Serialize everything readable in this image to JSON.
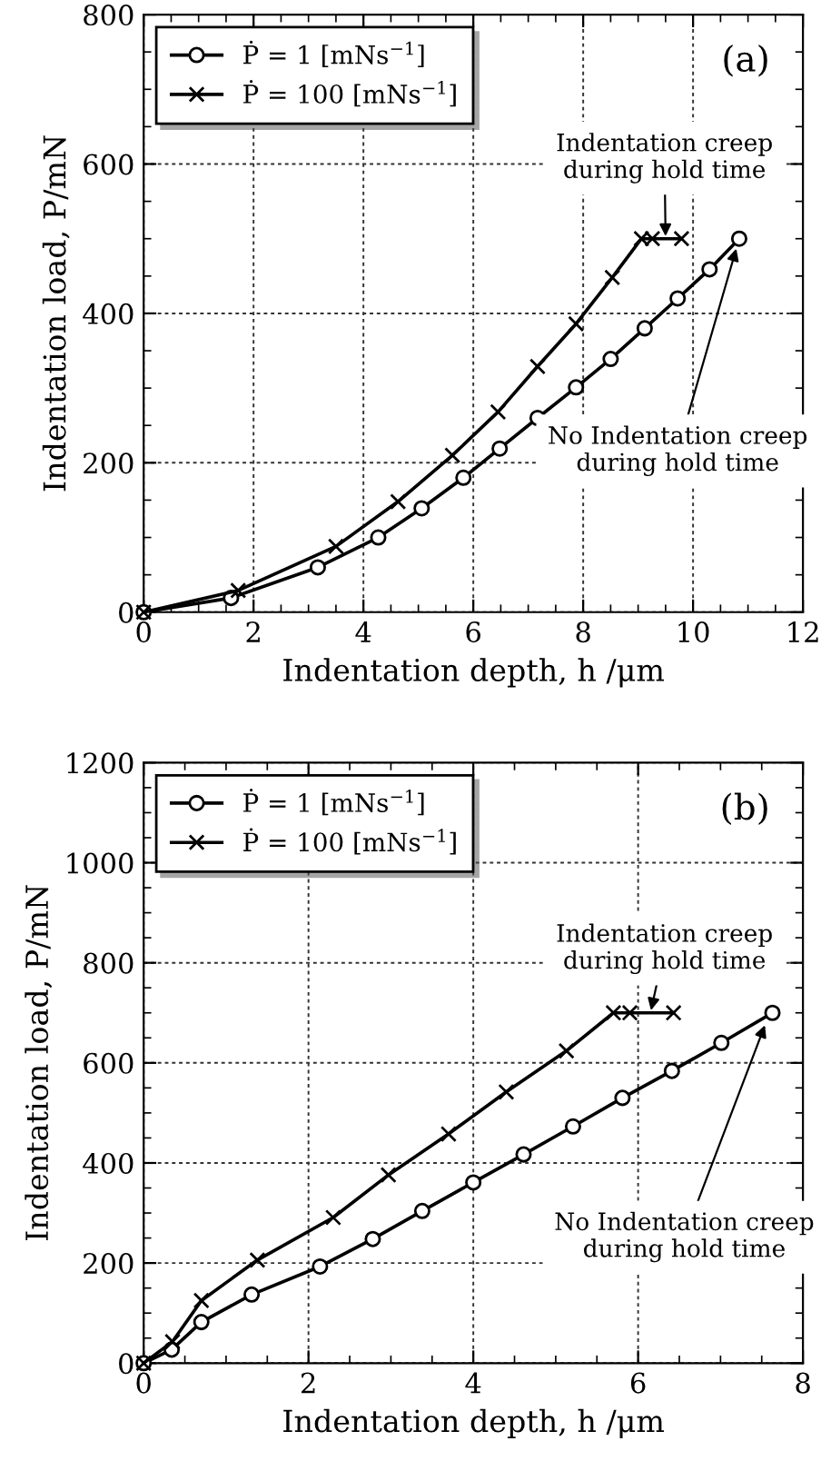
{
  "chart_data": [
    {
      "type": "line",
      "xlabel": "Indentation depth, h /μm",
      "ylabel": "Indentation load, P/mN",
      "xlim": [
        0,
        12
      ],
      "ylim": [
        0,
        800
      ],
      "xticks": [
        0,
        2,
        4,
        6,
        8,
        10,
        12
      ],
      "yticks": [
        0,
        200,
        400,
        600,
        800
      ],
      "grid": true,
      "legend": "top left",
      "line_style": "solid",
      "series": [
        {
          "name": "Ṗ = 1 [mNs$^{−1}$]",
          "color": "#000000",
          "marker": "circle",
          "x": [
            0,
            1.59,
            3.17,
            4.27,
            5.06,
            5.82,
            6.48,
            7.17,
            7.87,
            8.5,
            9.12,
            9.72,
            10.3,
            10.84
          ],
          "values": [
            0,
            19,
            60,
            100,
            139,
            180,
            219,
            260,
            301,
            339,
            380,
            420,
            459,
            500
          ]
        },
        {
          "name": "Ṗ = 100 [mNs$^{−1}$]",
          "color": "#000000",
          "marker": "cross",
          "x": [
            0,
            1.72,
            3.5,
            4.63,
            5.62,
            6.45,
            7.17,
            7.87,
            8.53,
            9.06,
            9.26,
            9.79
          ],
          "values": [
            0,
            29,
            88,
            148,
            210,
            268,
            329,
            386,
            448,
            500,
            500,
            500
          ]
        }
      ],
      "annotations": [
        "(a)",
        {
          "text": "Indentation creep\nduring hold time",
          "x": 9.5,
          "y": 500
        },
        {
          "text": "No Indentation creep\nduring hold time",
          "x": 10.8,
          "y": 490
        }
      ]
    },
    {
      "type": "line",
      "xlabel": "Indentation depth, h /μm",
      "ylabel": "Indentation load, P/mN",
      "xlim": [
        0,
        8
      ],
      "ylim": [
        0,
        1200
      ],
      "xticks": [
        0,
        2,
        4,
        6,
        8
      ],
      "yticks": [
        0,
        200,
        400,
        600,
        800,
        1000,
        1200
      ],
      "grid": true,
      "legend": "top left",
      "line_style": "solid",
      "series": [
        {
          "name": "Ṗ = 1 [mNs$^{−1}$]",
          "color": "#000000",
          "marker": "circle",
          "x": [
            0,
            0.34,
            0.7,
            1.31,
            2.14,
            2.78,
            3.38,
            4.0,
            4.61,
            5.21,
            5.81,
            6.41,
            7.01,
            7.63
          ],
          "values": [
            0,
            27,
            82,
            137,
            193,
            248,
            304,
            361,
            417,
            473,
            530,
            584,
            640,
            700
          ]
        },
        {
          "name": "Ṗ = 100 [mNs$^{−1}$]",
          "color": "#000000",
          "marker": "cross",
          "x": [
            0,
            0.35,
            0.7,
            1.38,
            2.3,
            2.97,
            3.7,
            4.4,
            5.13,
            5.7,
            5.9,
            6.43
          ],
          "values": [
            0,
            43,
            125,
            206,
            291,
            376,
            458,
            542,
            624,
            700,
            700,
            700
          ]
        }
      ],
      "annotations": [
        "(b)",
        {
          "text": "Indentation creep\nduring hold time",
          "x": 6.15,
          "y": 700
        },
        {
          "text": "No Indentation creep\nduring hold time",
          "x": 7.55,
          "y": 680
        }
      ]
    }
  ]
}
